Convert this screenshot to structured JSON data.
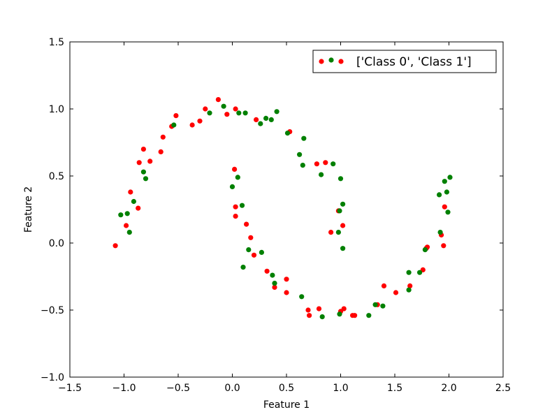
{
  "chart_data": {
    "type": "scatter",
    "title": "",
    "xlabel": "Feature 1",
    "ylabel": "Feature 2",
    "xlim": [
      -1.5,
      2.5
    ],
    "ylim": [
      -1.0,
      1.5
    ],
    "xticks": [
      "−1.5",
      "−1.0",
      "−0.5",
      "0.0",
      "0.5",
      "1.0",
      "1.5",
      "2.0",
      "2.5"
    ],
    "yticks": [
      "−1.0",
      "−0.5",
      "0.0",
      "0.5",
      "1.0",
      "1.5"
    ],
    "grid": false,
    "legend": {
      "position": "top-right",
      "label": "['Class 0', 'Class 1']"
    },
    "series": [
      {
        "color": "#ff0000",
        "points": [
          [
            -1.08,
            -0.02
          ],
          [
            -0.98,
            0.13
          ],
          [
            -0.94,
            0.38
          ],
          [
            -0.87,
            0.26
          ],
          [
            -0.86,
            0.6
          ],
          [
            -0.82,
            0.7
          ],
          [
            -0.76,
            0.61
          ],
          [
            -0.66,
            0.68
          ],
          [
            -0.64,
            0.79
          ],
          [
            -0.56,
            0.87
          ],
          [
            -0.52,
            0.95
          ],
          [
            -0.37,
            0.88
          ],
          [
            -0.3,
            0.91
          ],
          [
            -0.25,
            1.0
          ],
          [
            -0.13,
            1.07
          ],
          [
            -0.05,
            0.96
          ],
          [
            0.03,
            1.0
          ],
          [
            0.22,
            0.92
          ],
          [
            0.53,
            0.83
          ],
          [
            0.78,
            0.59
          ],
          [
            0.86,
            0.6
          ],
          [
            0.02,
            0.55
          ],
          [
            0.03,
            0.27
          ],
          [
            0.03,
            0.2
          ],
          [
            0.13,
            0.14
          ],
          [
            0.17,
            0.04
          ],
          [
            0.2,
            -0.09
          ],
          [
            0.32,
            -0.21
          ],
          [
            0.39,
            -0.33
          ],
          [
            0.5,
            -0.27
          ],
          [
            0.5,
            -0.37
          ],
          [
            0.7,
            -0.5
          ],
          [
            0.71,
            -0.54
          ],
          [
            0.8,
            -0.49
          ],
          [
            1.0,
            -0.51
          ],
          [
            1.03,
            -0.49
          ],
          [
            1.11,
            -0.54
          ],
          [
            1.13,
            -0.54
          ],
          [
            1.34,
            -0.46
          ],
          [
            1.4,
            -0.32
          ],
          [
            1.51,
            -0.37
          ],
          [
            1.64,
            -0.32
          ],
          [
            1.76,
            -0.2
          ],
          [
            1.79,
            -0.04
          ],
          [
            1.8,
            -0.03
          ],
          [
            1.93,
            0.06
          ],
          [
            1.95,
            -0.02
          ],
          [
            1.96,
            0.27
          ],
          [
            0.91,
            0.08
          ],
          [
            0.98,
            0.24
          ],
          [
            1.02,
            0.13
          ]
        ]
      },
      {
        "color": "#008000",
        "points": [
          [
            -1.03,
            0.21
          ],
          [
            -0.97,
            0.22
          ],
          [
            -0.95,
            0.08
          ],
          [
            -0.91,
            0.31
          ],
          [
            -0.82,
            0.53
          ],
          [
            -0.8,
            0.48
          ],
          [
            -0.54,
            0.88
          ],
          [
            -0.21,
            0.97
          ],
          [
            -0.08,
            1.02
          ],
          [
            0.06,
            0.97
          ],
          [
            0.12,
            0.97
          ],
          [
            0.26,
            0.89
          ],
          [
            0.31,
            0.93
          ],
          [
            0.36,
            0.92
          ],
          [
            0.41,
            0.98
          ],
          [
            0.51,
            0.82
          ],
          [
            0.62,
            0.66
          ],
          [
            0.65,
            0.58
          ],
          [
            0.66,
            0.78
          ],
          [
            0.82,
            0.51
          ],
          [
            0.93,
            0.59
          ],
          [
            1.0,
            0.48
          ],
          [
            0.0,
            0.42
          ],
          [
            0.05,
            0.49
          ],
          [
            0.09,
            0.28
          ],
          [
            0.1,
            -0.18
          ],
          [
            0.15,
            -0.05
          ],
          [
            0.27,
            -0.07
          ],
          [
            0.37,
            -0.24
          ],
          [
            0.39,
            -0.3
          ],
          [
            0.64,
            -0.4
          ],
          [
            0.83,
            -0.55
          ],
          [
            0.99,
            -0.53
          ],
          [
            1.26,
            -0.54
          ],
          [
            1.32,
            -0.46
          ],
          [
            1.39,
            -0.47
          ],
          [
            1.63,
            -0.22
          ],
          [
            1.63,
            -0.35
          ],
          [
            1.73,
            -0.22
          ],
          [
            1.78,
            -0.05
          ],
          [
            1.91,
            0.36
          ],
          [
            1.92,
            0.08
          ],
          [
            1.96,
            0.46
          ],
          [
            1.98,
            0.38
          ],
          [
            1.99,
            0.23
          ],
          [
            2.01,
            0.49
          ],
          [
            0.98,
            0.08
          ],
          [
            0.99,
            0.24
          ],
          [
            1.02,
            0.29
          ],
          [
            1.02,
            -0.04
          ]
        ]
      }
    ]
  }
}
